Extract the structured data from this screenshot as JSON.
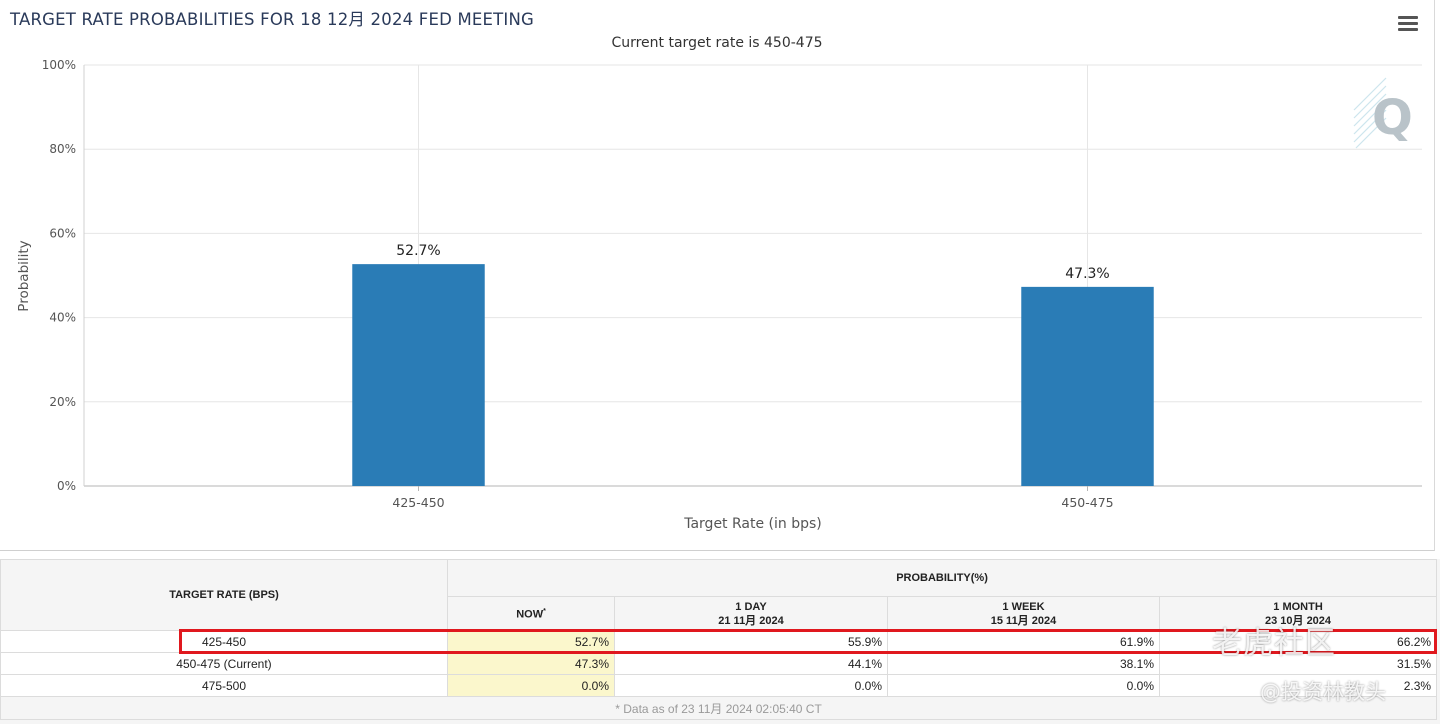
{
  "chart_data": {
    "type": "bar",
    "title": "TARGET RATE PROBABILITIES FOR 18 12月 2024 FED MEETING",
    "subtitle": "Current target rate is 450-475",
    "categories": [
      "425-450",
      "450-475"
    ],
    "values": [
      52.7,
      47.3
    ],
    "data_labels": [
      "52.7%",
      "47.3%"
    ],
    "xlabel": "Target Rate (in bps)",
    "ylabel": "Probability",
    "ylim": [
      0,
      100
    ],
    "yticks": [
      0,
      20,
      40,
      60,
      80,
      100
    ],
    "ytick_labels": [
      "0%",
      "20%",
      "40%",
      "60%",
      "80%",
      "100%"
    ],
    "grid": true,
    "bar_color": "#2a7cb6"
  },
  "menu_icon": "hamburger-menu-icon",
  "table": {
    "rate_header": "TARGET RATE (BPS)",
    "prob_header": "PROBABILITY(%)",
    "columns": [
      {
        "label": "NOW",
        "mark": "*",
        "date": ""
      },
      {
        "label": "1 DAY",
        "date": "21 11月 2024"
      },
      {
        "label": "1 WEEK",
        "date": "15 11月 2024"
      },
      {
        "label": "1 MONTH",
        "date": "23 10月 2024"
      }
    ],
    "rows": [
      {
        "rate": "425-450",
        "values": [
          "52.7%",
          "55.9%",
          "61.9%",
          "66.2%"
        ]
      },
      {
        "rate": "450-475 (Current)",
        "values": [
          "47.3%",
          "44.1%",
          "38.1%",
          "31.5%"
        ]
      },
      {
        "rate": "475-500",
        "values": [
          "0.0%",
          "0.0%",
          "0.0%",
          "2.3%"
        ]
      }
    ],
    "note": "* Data as of 23 11月 2024 02:05:40 CT"
  },
  "watermarks": {
    "community": "老虎社区",
    "author": "@投资林教头"
  }
}
